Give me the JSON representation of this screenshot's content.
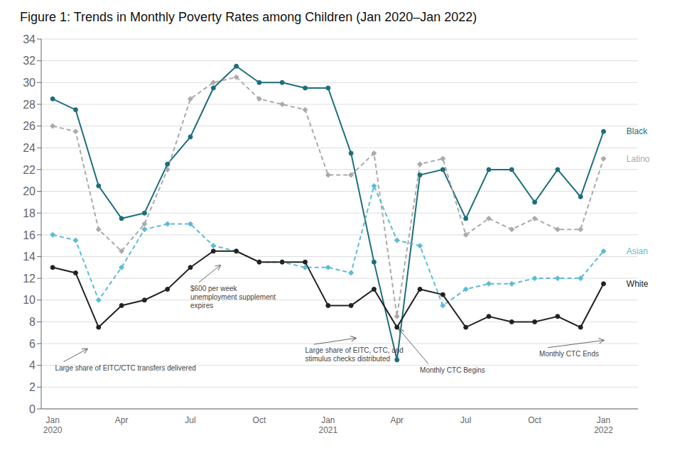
{
  "chart_data": {
    "type": "line",
    "title": "Figure 1: Trends in Monthly Poverty Rates among Children (Jan 2020–Jan 2022)",
    "categories": [
      "Jan\n2020",
      null,
      null,
      "Apr",
      null,
      null,
      "Jul",
      null,
      null,
      "Oct",
      null,
      null,
      "Jan\n2021",
      null,
      null,
      "Apr",
      null,
      null,
      "Jul",
      null,
      null,
      "Oct",
      null,
      null,
      "Jan\n2022"
    ],
    "series": [
      {
        "name": "Black",
        "color": "#1c6e7d",
        "line_style": "solid",
        "marker": "circle",
        "values": [
          28.5,
          27.5,
          20.5,
          17.5,
          18.0,
          22.5,
          25.0,
          29.5,
          31.5,
          30.0,
          30.0,
          29.5,
          29.5,
          23.5,
          13.5,
          4.5,
          21.5,
          22.0,
          17.5,
          22.0,
          22.0,
          19.0,
          22.0,
          19.5,
          25.5
        ]
      },
      {
        "name": "Latino",
        "color": "#aaaaaa",
        "line_style": "dashed",
        "marker": "diamond",
        "values": [
          26.0,
          25.5,
          16.5,
          14.5,
          17.0,
          22.0,
          28.5,
          30.0,
          30.5,
          28.5,
          28.0,
          27.5,
          21.5,
          21.5,
          23.5,
          8.5,
          22.5,
          23.0,
          16.0,
          17.5,
          16.5,
          17.5,
          16.5,
          16.5,
          23.0
        ]
      },
      {
        "name": "Asian",
        "color": "#5bbcd6",
        "line_style": "dashed",
        "marker": "diamond",
        "values": [
          16.0,
          15.5,
          10.0,
          13.0,
          16.5,
          17.0,
          17.0,
          15.0,
          14.5,
          13.5,
          13.5,
          13.0,
          13.0,
          12.5,
          20.5,
          15.5,
          15.0,
          9.5,
          11.0,
          11.5,
          11.5,
          12.0,
          12.0,
          12.0,
          14.5
        ]
      },
      {
        "name": "White",
        "color": "#222222",
        "line_style": "solid",
        "marker": "circle",
        "values": [
          13.0,
          12.5,
          7.5,
          9.5,
          10.0,
          11.0,
          13.0,
          14.5,
          14.5,
          13.5,
          13.5,
          13.5,
          9.5,
          9.5,
          11.0,
          7.5,
          11.0,
          10.5,
          7.5,
          8.5,
          8.0,
          8.0,
          8.5,
          7.5,
          11.5
        ]
      }
    ],
    "ylim": [
      0,
      34
    ],
    "yticks": [
      0,
      2,
      4,
      6,
      8,
      10,
      12,
      14,
      16,
      18,
      20,
      22,
      24,
      26,
      28,
      30,
      32,
      34
    ],
    "grid": true,
    "annotations": [
      "Large share of EITC/CTC transfers delivered",
      "$600 per week\nunemployment supplement\nexpires",
      "Large share of EITC, CTC, and\nstimulus checks distributed",
      "Monthly CTC Begins",
      "Monthly CTC Ends"
    ]
  }
}
